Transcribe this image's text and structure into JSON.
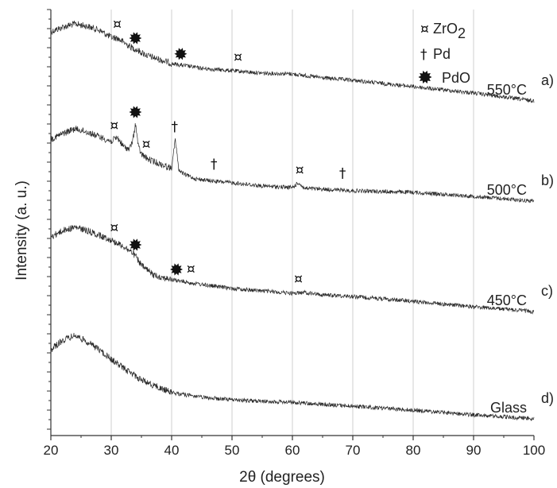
{
  "chart_data": {
    "type": "line",
    "xlabel": "2θ (degrees)",
    "ylabel": "Intensity (a. u.)",
    "xlim": [
      20,
      100
    ],
    "x_ticks": [
      "20",
      "30",
      "40",
      "50",
      "60",
      "70",
      "80",
      "90",
      "100"
    ],
    "grid": "vertical",
    "legend": {
      "position": "top-right",
      "items": [
        {
          "symbol": "¤",
          "label": "ZrO",
          "subscript": "2"
        },
        {
          "symbol": "†",
          "label": "Pd"
        },
        {
          "symbol": "✹",
          "label": "PdO"
        }
      ]
    },
    "series": [
      {
        "name": "550°C",
        "tag": "a)",
        "x": [
          20,
          22,
          24,
          26,
          28,
          30,
          31,
          33,
          36,
          40,
          45,
          50,
          55,
          60,
          65,
          70,
          80,
          90,
          100
        ],
        "y": [
          40,
          34,
          30,
          33,
          38,
          47,
          48,
          58,
          70,
          80,
          86,
          89,
          92,
          93,
          98,
          101,
          109,
          117,
          127
        ],
        "markers": [
          {
            "symbol": "¤",
            "x": 31
          },
          {
            "symbol": "✹",
            "x": 34
          },
          {
            "symbol": "✹",
            "x": 41.5
          },
          {
            "symbol": "¤",
            "x": 51
          }
        ]
      },
      {
        "name": "500°C",
        "tag": "b)",
        "x": [
          20,
          22,
          24,
          26,
          28,
          30,
          31,
          32,
          33,
          33.6,
          34,
          34.5,
          35,
          36,
          38,
          40,
          40.6,
          41.2,
          42,
          44,
          47,
          50,
          55,
          60,
          61,
          62,
          65,
          70,
          80,
          90,
          100
        ],
        "y": [
          175,
          168,
          162,
          166,
          172,
          178,
          173,
          184,
          188,
          176,
          155,
          185,
          194,
          200,
          206,
          212,
          175,
          214,
          219,
          225,
          228,
          230,
          234,
          236,
          230,
          237,
          238,
          240,
          242,
          247,
          253
        ],
        "markers": [
          {
            "symbol": "¤",
            "x": 30.5
          },
          {
            "symbol": "✹",
            "x": 34
          },
          {
            "symbol": "¤",
            "x": 35.8
          },
          {
            "symbol": "†",
            "x": 40.5
          },
          {
            "symbol": "†",
            "x": 47
          },
          {
            "symbol": "¤",
            "x": 61.2
          },
          {
            "symbol": "†",
            "x": 68.3
          }
        ]
      },
      {
        "name": "450°C",
        "tag": "c)",
        "x": [
          20,
          22,
          24,
          26,
          28,
          30,
          32,
          33.5,
          34,
          35,
          37,
          40,
          45,
          50,
          55,
          60,
          62,
          65,
          70,
          80,
          90,
          100
        ],
        "y": [
          298,
          290,
          286,
          290,
          296,
          302,
          310,
          318,
          322,
          334,
          346,
          352,
          358,
          363,
          366,
          369,
          368,
          371,
          373,
          379,
          386,
          392
        ],
        "markers": [
          {
            "symbol": "¤",
            "x": 30.5
          },
          {
            "symbol": "✹",
            "x": 34
          },
          {
            "symbol": "✹",
            "x": 40.8
          },
          {
            "symbol": "¤",
            "x": 43.2
          },
          {
            "symbol": "¤",
            "x": 61
          }
        ]
      },
      {
        "name": "Glass",
        "tag": "d)",
        "x": [
          20,
          22,
          24,
          26,
          28,
          30,
          32,
          35,
          38,
          40,
          45,
          50,
          55,
          60,
          65,
          70,
          80,
          90,
          100
        ],
        "y": [
          440,
          428,
          422,
          430,
          440,
          452,
          463,
          478,
          488,
          494,
          500,
          503,
          505,
          506,
          509,
          511,
          516,
          522,
          527
        ],
        "markers": []
      }
    ]
  }
}
